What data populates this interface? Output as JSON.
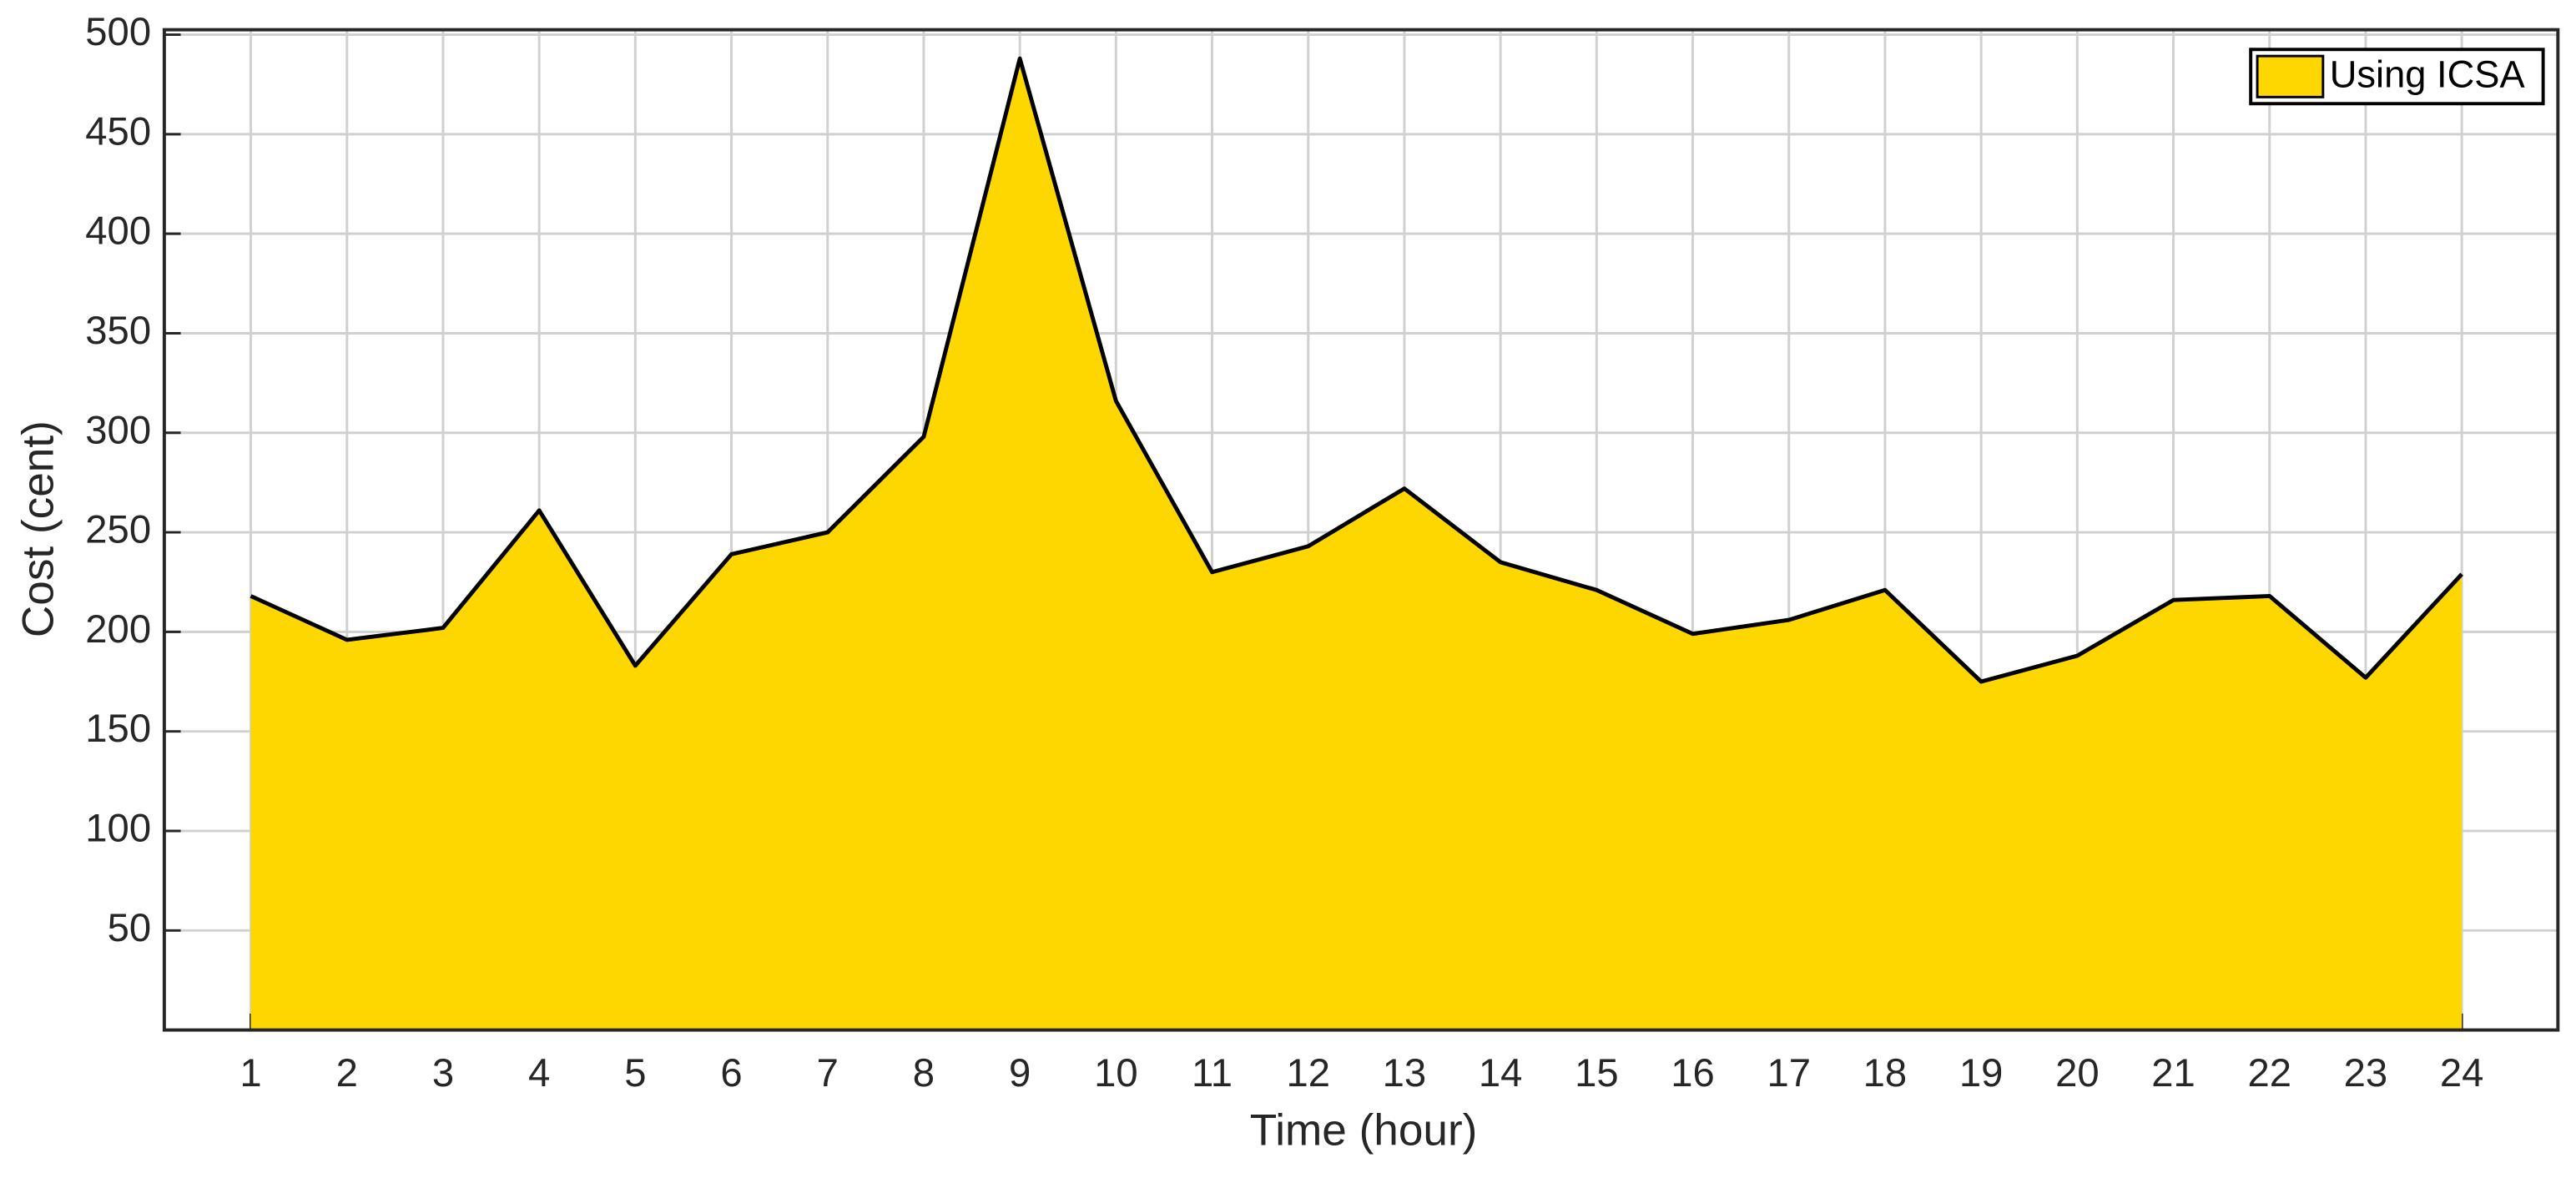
{
  "chart_data": {
    "type": "area",
    "xlabel": "Time (hour)",
    "ylabel": "Cost (cent)",
    "x": [
      1,
      2,
      3,
      4,
      5,
      6,
      7,
      8,
      9,
      10,
      11,
      12,
      13,
      14,
      15,
      16,
      17,
      18,
      19,
      20,
      21,
      22,
      23,
      24
    ],
    "series": [
      {
        "name": "Using ICSA",
        "color": "#ffd700",
        "values": [
          218,
          196,
          202,
          261,
          183,
          239,
          250,
          298,
          488,
          316,
          230,
          243,
          272,
          235,
          221,
          199,
          206,
          221,
          175,
          188,
          216,
          218,
          177,
          229
        ]
      }
    ],
    "xlim": [
      0.1,
      25
    ],
    "xticks": [
      1,
      2,
      3,
      4,
      5,
      6,
      7,
      8,
      9,
      10,
      11,
      12,
      13,
      14,
      15,
      16,
      17,
      18,
      19,
      20,
      21,
      22,
      23,
      24
    ],
    "ylim": [
      0,
      500
    ],
    "yticks": [
      50,
      100,
      150,
      200,
      250,
      300,
      350,
      400,
      450,
      500
    ],
    "grid": true,
    "legend": "upper right"
  }
}
